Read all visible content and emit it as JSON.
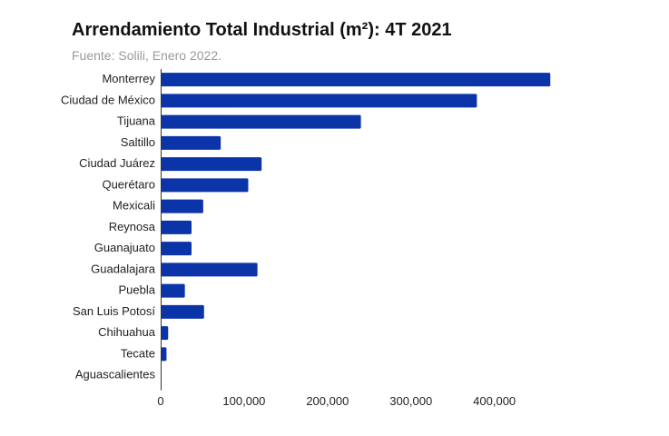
{
  "chart_data": {
    "type": "bar",
    "orientation": "horizontal",
    "title": "Arrendamiento Total Industrial (m²): 4T 2021",
    "subtitle": "Fuente: Solili, Enero 2022.",
    "categories": [
      "Monterrey",
      "Ciudad de México",
      "Tijuana",
      "Saltillo",
      "Ciudad Juárez",
      "Querétaro",
      "Mexicali",
      "Reynosa",
      "Guanajuato",
      "Guadalajara",
      "Puebla",
      "San Luis Potosí",
      "Chihuahua",
      "Tecate",
      "Aguascalientes"
    ],
    "values": [
      467000,
      379000,
      240000,
      72000,
      121000,
      105000,
      51000,
      37000,
      37000,
      116000,
      29000,
      52000,
      9000,
      7000,
      0
    ],
    "xlim": [
      0,
      470000
    ],
    "xticks": [
      0,
      100000,
      200000,
      300000,
      400000
    ],
    "xtick_labels": [
      "0",
      "100,000",
      "200,000",
      "300,000",
      "400,000"
    ],
    "bar_color": "#0a34a8",
    "grid": false,
    "legend": "none"
  }
}
